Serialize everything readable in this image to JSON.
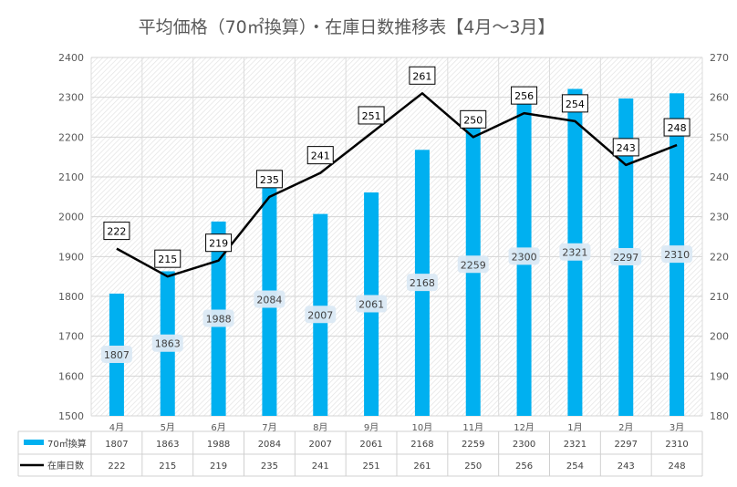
{
  "chart_data": {
    "type": "bar",
    "title": "平均価格（70㎡換算）・在庫日数推移表【4月～3月】",
    "categories": [
      "4月",
      "5月",
      "6月",
      "7月",
      "8月",
      "9月",
      "10月",
      "11月",
      "12月",
      "1月",
      "2月",
      "3月"
    ],
    "series": [
      {
        "name": "70㎡換算",
        "type": "bar",
        "axis": "left",
        "color": "#00b0f0",
        "values": [
          1807,
          1863,
          1988,
          2084,
          2007,
          2061,
          2168,
          2259,
          2300,
          2321,
          2297,
          2310
        ]
      },
      {
        "name": "在庫日数",
        "type": "line",
        "axis": "right",
        "color": "#000000",
        "values": [
          222,
          215,
          219,
          235,
          241,
          251,
          261,
          250,
          256,
          254,
          243,
          248
        ]
      }
    ],
    "y_left": {
      "min": 1500,
      "max": 2400,
      "step": 100
    },
    "y_right": {
      "min": 180,
      "max": 270,
      "step": 10
    },
    "grid": true,
    "data_table": true,
    "legend": "data-table"
  }
}
